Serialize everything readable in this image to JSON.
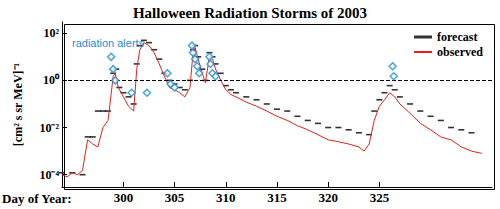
{
  "chart_data": {
    "type": "line",
    "title": "Halloween Radiation Storms of 2003",
    "x_label": "Day of Year:",
    "y_label": "[cm² s sr MeV]⁻¹",
    "log": "y",
    "grid": false,
    "legend": "top-right",
    "xlim": [
      294,
      336
    ],
    "xticks": [
      300,
      305,
      310,
      315,
      320,
      325
    ],
    "ylim": [
      3e-05,
      300
    ],
    "yticks": [
      {
        "value": 0.0001,
        "label": "10⁻⁴"
      },
      {
        "value": 0.01,
        "label": "10⁻²"
      },
      {
        "value": 1,
        "label": "10⁰"
      },
      {
        "value": 100,
        "label": "10²"
      }
    ],
    "reference_line": {
      "value": 1,
      "color": "#000000",
      "line_style": "dashed"
    },
    "series": [
      {
        "name": "forecast",
        "color": "#000000",
        "type": "scatter",
        "marker": "dash",
        "x": [
          294,
          295,
          296,
          296.5,
          297,
          297.5,
          298,
          298.5,
          299,
          299.3,
          299.6,
          300,
          300.5,
          301,
          301.3,
          301.6,
          302,
          302.5,
          303,
          303.5,
          304,
          304.5,
          305,
          305.5,
          306,
          306.5,
          306.8,
          307,
          307.3,
          307.7,
          308,
          308.4,
          308.7,
          309,
          309.5,
          310,
          310.5,
          311,
          312,
          313,
          314,
          315,
          316,
          317,
          318,
          319,
          320,
          321,
          322,
          323,
          324,
          324.5,
          325,
          325.5,
          326,
          326.5,
          327,
          328,
          329,
          330,
          331,
          332,
          333,
          334
        ],
        "values": [
          0.00012,
          0.00012,
          0.0001,
          0.004,
          0.004,
          0.05,
          0.05,
          0.05,
          2,
          3,
          0.5,
          0.3,
          0.2,
          0.1,
          5,
          30,
          50,
          40,
          20,
          8,
          2,
          1,
          0.7,
          0.5,
          0.4,
          1,
          20,
          30,
          10,
          3,
          1,
          15,
          10,
          5,
          2,
          0.6,
          0.4,
          0.3,
          0.2,
          0.15,
          0.1,
          0.06,
          0.05,
          0.03,
          0.02,
          0.015,
          0.01,
          0.01,
          0.008,
          0.006,
          0.005,
          0.05,
          0.15,
          0.3,
          0.6,
          0.4,
          0.2,
          0.1,
          0.05,
          0.03,
          0.02,
          0.01,
          0.008,
          0.006
        ]
      },
      {
        "name": "observed",
        "color": "#e8201a",
        "type": "line",
        "line_style": "solid",
        "x": [
          294,
          294.5,
          295,
          295.5,
          296,
          296.5,
          297,
          297.5,
          298,
          298.5,
          299,
          299.2,
          299.5,
          300,
          300.5,
          301,
          301.3,
          301.6,
          302,
          302.5,
          303,
          303.5,
          304,
          304.5,
          305,
          305.5,
          306,
          306.5,
          306.8,
          307,
          307.3,
          307.7,
          308,
          308.4,
          308.7,
          309,
          309.5,
          310,
          310.5,
          311,
          312,
          313,
          314,
          315,
          316,
          317,
          318,
          319,
          320,
          321,
          322,
          323,
          323.5,
          324,
          324.5,
          325,
          325.5,
          326,
          326.5,
          327,
          328,
          329,
          330,
          331,
          332,
          333,
          334,
          335
        ],
        "values": [
          0.0001,
          8e-05,
          0.00012,
          0.0001,
          0.00015,
          0.003,
          0.002,
          0.0015,
          0.01,
          0.02,
          1.5,
          2,
          0.5,
          0.2,
          0.08,
          0.05,
          3,
          20,
          40,
          30,
          15,
          5,
          1.5,
          0.5,
          0.4,
          0.3,
          0.2,
          0.5,
          15,
          25,
          8,
          2,
          0.8,
          10,
          8,
          3,
          1,
          0.4,
          0.25,
          0.2,
          0.12,
          0.08,
          0.05,
          0.03,
          0.02,
          0.012,
          0.008,
          0.005,
          0.003,
          0.0025,
          0.002,
          0.0015,
          0.001,
          0.002,
          0.02,
          0.08,
          0.15,
          0.3,
          0.2,
          0.1,
          0.04,
          0.015,
          0.008,
          0.004,
          0.003,
          0.0015,
          0.001,
          0.0008
        ]
      }
    ],
    "alerts": {
      "color": "#1a8fd6",
      "marker": "diamond",
      "x": [
        298.8,
        299,
        299.2,
        300.8,
        302.3,
        304.3,
        304.6,
        305,
        306.7,
        306.8,
        307,
        307.2,
        307.4,
        308.4,
        308.5,
        308.7,
        309,
        326.3,
        326.4
      ],
      "values": [
        10,
        3,
        1,
        0.3,
        0.3,
        2,
        0.7,
        0.5,
        30,
        15,
        8,
        4,
        2,
        10,
        5,
        2,
        1.5,
        4,
        1.5
      ]
    },
    "annotations": [
      {
        "text": "radiation alerts",
        "x": 298.5,
        "y": 40,
        "color": "#1a8fd6"
      }
    ]
  }
}
